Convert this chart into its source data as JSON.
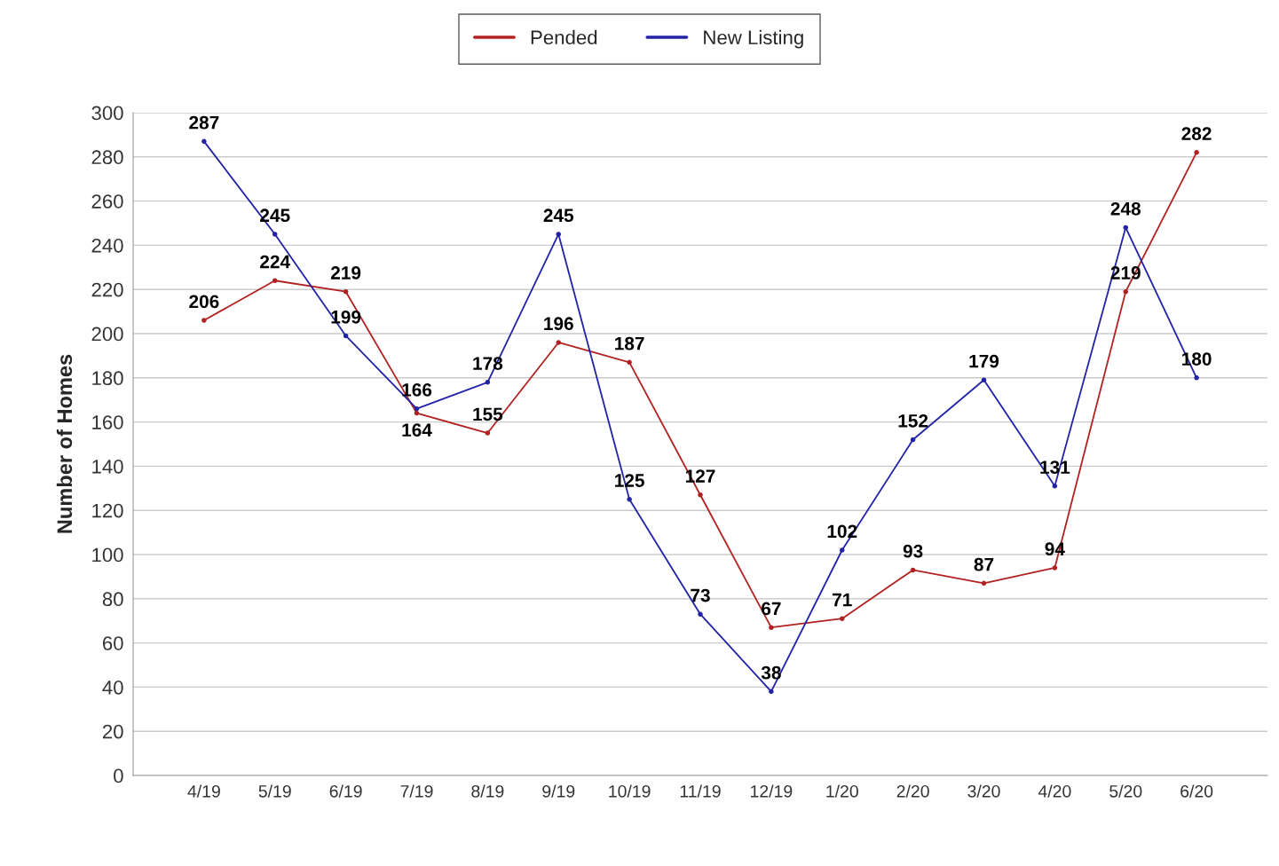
{
  "chart_data": {
    "type": "line",
    "ylabel": "Number of Homes",
    "categories": [
      "4/19",
      "5/19",
      "6/19",
      "7/19",
      "8/19",
      "9/19",
      "10/19",
      "11/19",
      "12/19",
      "1/20",
      "2/20",
      "3/20",
      "4/20",
      "5/20",
      "6/20"
    ],
    "series": [
      {
        "name": "Pended",
        "color": "#b22222",
        "values": [
          206,
          224,
          219,
          164,
          155,
          196,
          187,
          127,
          67,
          71,
          93,
          87,
          94,
          219,
          282
        ]
      },
      {
        "name": "New Listing",
        "color": "#2323a8",
        "values": [
          287,
          245,
          199,
          166,
          178,
          245,
          125,
          73,
          38,
          102,
          152,
          179,
          131,
          248,
          180
        ]
      }
    ],
    "ylim": [
      0,
      300
    ],
    "yticks": [
      0,
      20,
      40,
      60,
      80,
      100,
      120,
      140,
      160,
      180,
      200,
      220,
      240,
      260,
      280,
      300
    ],
    "grid": "y",
    "legend": "top",
    "marker": "circle",
    "line_style": "solid",
    "data_labels": true
  }
}
